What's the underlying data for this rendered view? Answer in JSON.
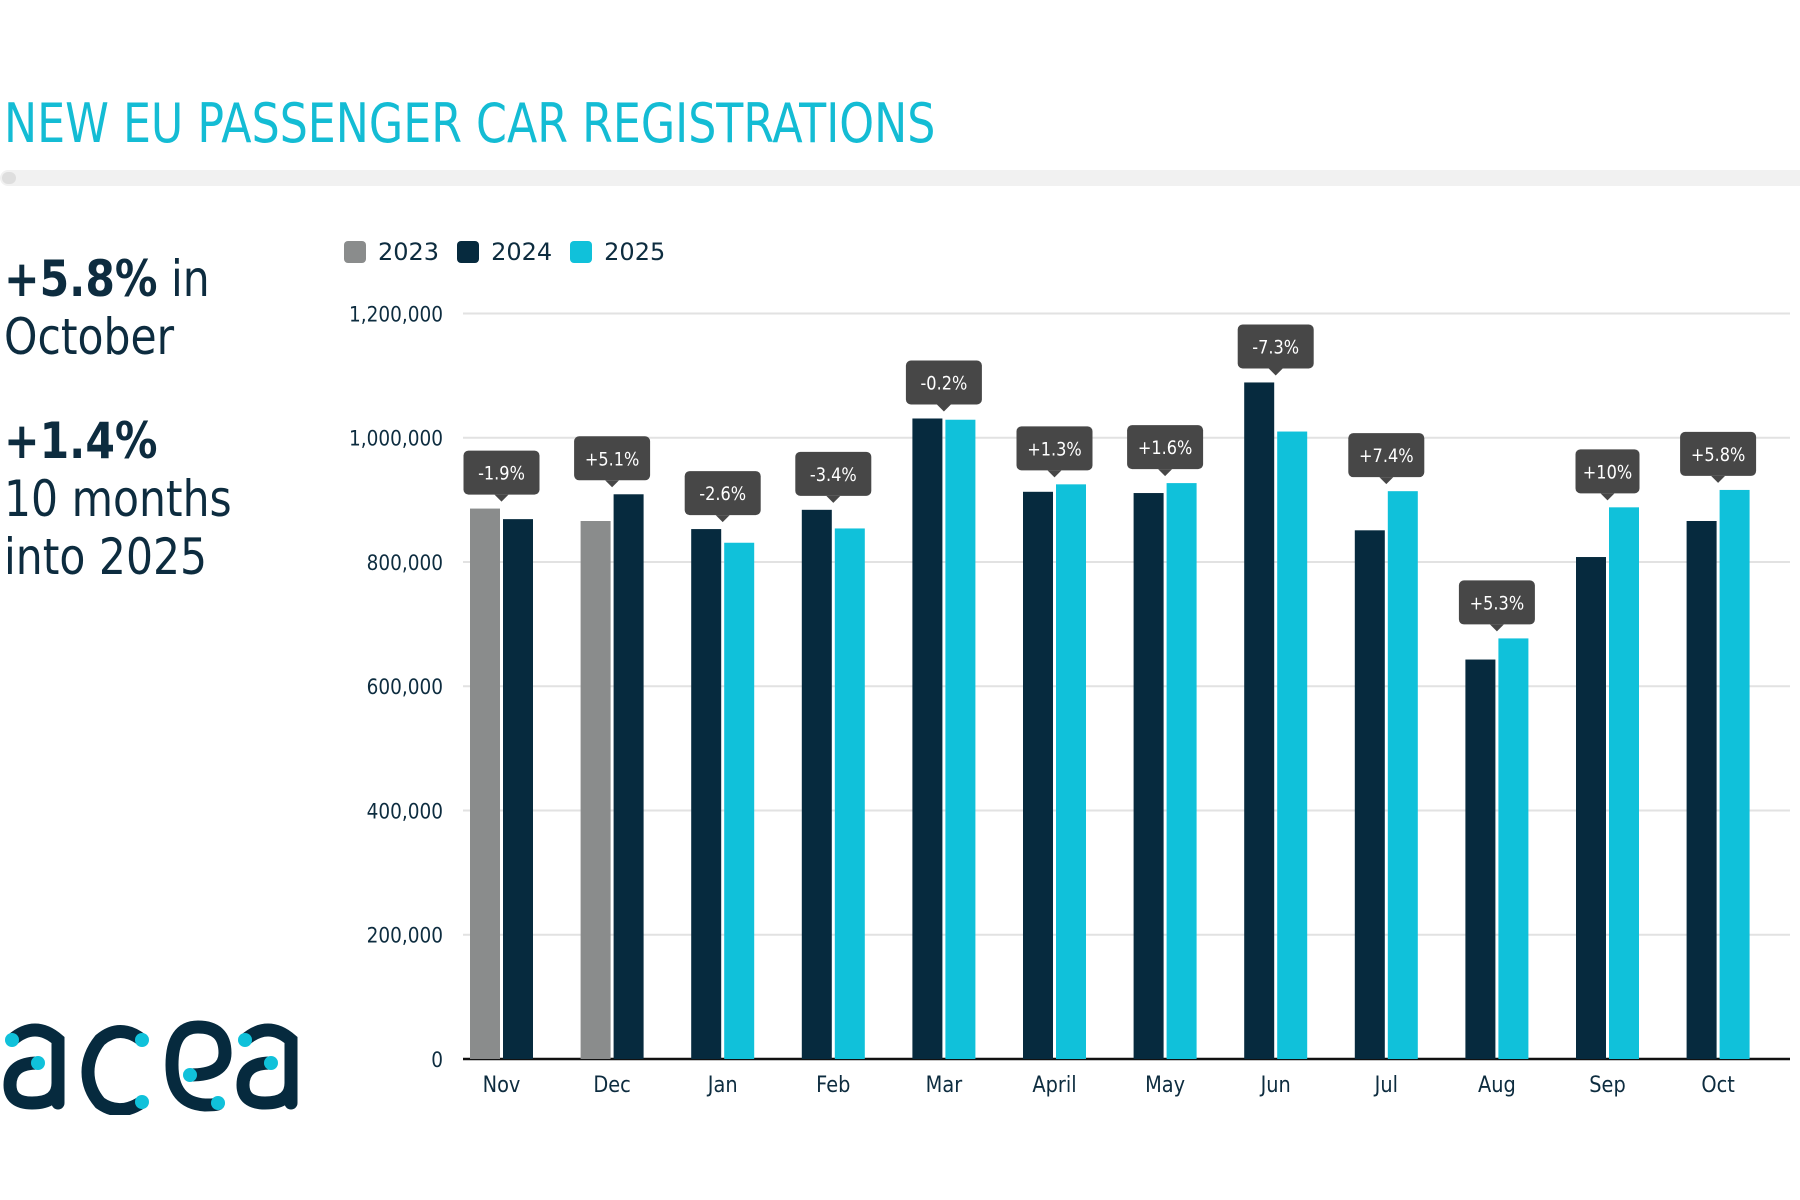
{
  "header": {
    "title": "NEW EU PASSENGER CAR REGISTRATIONS"
  },
  "kpis": [
    {
      "value": "+5.8%",
      "text_suffix": " in",
      "line2": "October"
    },
    {
      "value": "+1.4%",
      "line2": "10 months",
      "line3": "into 2025"
    }
  ],
  "logo": {
    "text": "acea",
    "icon": "acea-logo"
  },
  "colors": {
    "accent": "#14bcd4",
    "2023": "#8a8c8c",
    "2024": "#062a3e",
    "2025": "#10c1da",
    "label_bg": "#474747",
    "grid": "#e2e2e2",
    "text": "#0d2c3f"
  },
  "chart_data": {
    "type": "bar",
    "title": "NEW EU PASSENGER CAR REGISTRATIONS",
    "xlabel": "",
    "ylabel": "",
    "ylim": [
      0,
      1200000
    ],
    "yticks": [
      0,
      200000,
      400000,
      600000,
      800000,
      1000000,
      1200000
    ],
    "ytick_labels": [
      "0",
      "200,000",
      "400,000",
      "600,000",
      "800,000",
      "1,000,000",
      "1,200,000"
    ],
    "grid": true,
    "legend_position": "top-left",
    "categories": [
      "Nov",
      "Dec",
      "Jan",
      "Feb",
      "Mar",
      "April",
      "May",
      "Jun",
      "Jul",
      "Aug",
      "Sep",
      "Oct"
    ],
    "series": [
      {
        "name": "2023",
        "color": "#8a8c8c",
        "values": [
          886000,
          866000,
          null,
          null,
          null,
          null,
          null,
          null,
          null,
          null,
          null,
          null
        ]
      },
      {
        "name": "2024",
        "color": "#062a3e",
        "values": [
          869000,
          909000,
          853000,
          884000,
          1031000,
          913000,
          911000,
          1089000,
          851000,
          643000,
          808000,
          866000
        ]
      },
      {
        "name": "2025",
        "color": "#10c1da",
        "values": [
          null,
          null,
          831000,
          854000,
          1029000,
          925000,
          927000,
          1010000,
          914000,
          677000,
          888000,
          916000
        ]
      }
    ],
    "annotations": [
      "-1.9%",
      "+5.1%",
      "-2.6%",
      "-3.4%",
      "-0.2%",
      "+1.3%",
      "+1.6%",
      "-7.3%",
      "+7.4%",
      "+5.3%",
      "+10%",
      "+5.8%"
    ]
  }
}
